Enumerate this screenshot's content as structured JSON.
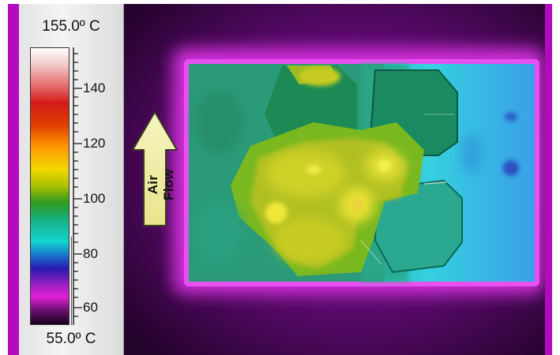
{
  "scale": {
    "max_label": "155.0º C",
    "min_label": "55.0º C",
    "tick_labels": [
      "140",
      "120",
      "100",
      "80",
      "60"
    ]
  },
  "annotation": {
    "arrow_label": "Air Flow"
  },
  "colors": {
    "frame_magenta": "#b10bbd",
    "background_purple": "#3a0848",
    "hot_yellow": "#e8e030",
    "board_green": "#2aa070",
    "cool_cyan": "#30c0d8"
  }
}
